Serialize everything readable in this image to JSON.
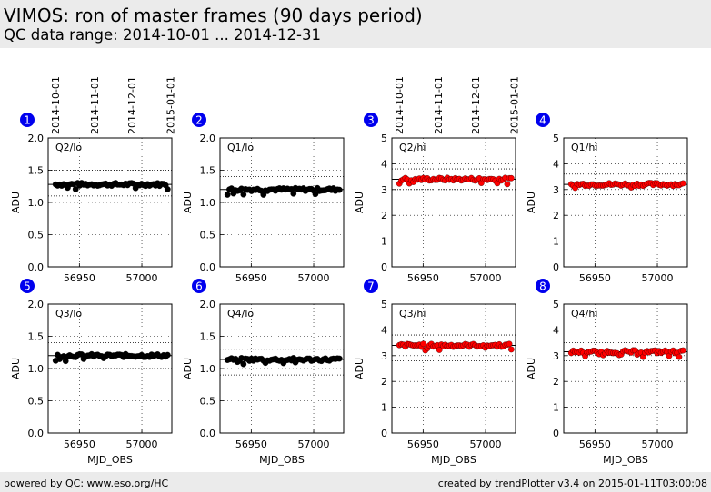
{
  "header": {
    "title": "VIMOS: ron of master frames (90 days period)",
    "subtitle": "QC data range: 2014-10-01 ... 2014-12-31"
  },
  "footer": {
    "left": "powered by QC: www.eso.org/HC",
    "right": "created by trendPlotter v3.4 on 2015-01-11T03:00:08"
  },
  "colors": {
    "black_series": "#000000",
    "red_series": "#ff0000",
    "badge": "#0000ee",
    "header_bg": "#ebebeb"
  },
  "chart_data": [
    {
      "type": "scatter",
      "panel": "1",
      "label": "Q2/lo",
      "ylabel": "ADU",
      "xlabel": "",
      "ylim": [
        0,
        2.0
      ],
      "yticks": [
        "0.0",
        "0.5",
        "1.0",
        "1.5",
        "2.0"
      ],
      "xlim": [
        56925,
        57024
      ],
      "xticks": [
        56950,
        57000
      ],
      "ref_lines": [
        1.5,
        1.1
      ],
      "color": "black",
      "level": 1.28,
      "date_ticks": [
        "2014-10-01",
        "2014-11-01",
        "2014-12-01",
        "2015-01-01"
      ]
    },
    {
      "type": "scatter",
      "panel": "2",
      "label": "Q1/lo",
      "ylabel": "ADU",
      "xlabel": "",
      "ylim": [
        0,
        2.0
      ],
      "yticks": [
        "0.0",
        "0.5",
        "1.0",
        "1.5",
        "2.0"
      ],
      "xlim": [
        56925,
        57024
      ],
      "xticks": [
        56950,
        57000
      ],
      "ref_lines": [
        1.4,
        1.0
      ],
      "color": "black",
      "level": 1.2,
      "date_ticks": []
    },
    {
      "type": "scatter",
      "panel": "3",
      "label": "Q2/hi",
      "ylabel": "ADU",
      "xlabel": "",
      "ylim": [
        0,
        5
      ],
      "yticks": [
        "0",
        "1",
        "2",
        "3",
        "4",
        "5"
      ],
      "xlim": [
        56925,
        57024
      ],
      "xticks": [
        56950,
        57000
      ],
      "ref_lines": [
        3.8,
        3.0
      ],
      "color": "red",
      "level": 3.4,
      "date_ticks": [
        "2014-10-01",
        "2014-11-01",
        "2014-12-01",
        "2015-01-01"
      ]
    },
    {
      "type": "scatter",
      "panel": "4",
      "label": "Q1/hi",
      "ylabel": "ADU",
      "xlabel": "",
      "ylim": [
        0,
        5
      ],
      "yticks": [
        "0",
        "1",
        "2",
        "3",
        "4",
        "5"
      ],
      "xlim": [
        56925,
        57024
      ],
      "xticks": [
        56950,
        57000
      ],
      "ref_lines": [
        3.6,
        2.8
      ],
      "color": "red",
      "level": 3.2,
      "date_ticks": []
    },
    {
      "type": "scatter",
      "panel": "5",
      "label": "Q3/lo",
      "ylabel": "ADU",
      "xlabel": "MJD_OBS",
      "ylim": [
        0,
        2.0
      ],
      "yticks": [
        "0.0",
        "0.5",
        "1.0",
        "1.5",
        "2.0"
      ],
      "xlim": [
        56925,
        57024
      ],
      "xticks": [
        56950,
        57000
      ],
      "ref_lines": [
        1.4,
        1.0
      ],
      "color": "black",
      "level": 1.2,
      "date_ticks": []
    },
    {
      "type": "scatter",
      "panel": "6",
      "label": "Q4/lo",
      "ylabel": "ADU",
      "xlabel": "MJD_OBS",
      "ylim": [
        0,
        2.0
      ],
      "yticks": [
        "0.0",
        "0.5",
        "1.0",
        "1.5",
        "2.0"
      ],
      "xlim": [
        56925,
        57024
      ],
      "xticks": [
        56950,
        57000
      ],
      "ref_lines": [
        1.3,
        0.9
      ],
      "color": "black",
      "level": 1.14,
      "date_ticks": []
    },
    {
      "type": "scatter",
      "panel": "7",
      "label": "Q3/hi",
      "ylabel": "ADU",
      "xlabel": "MJD_OBS",
      "ylim": [
        0,
        5
      ],
      "yticks": [
        "0",
        "1",
        "2",
        "3",
        "4",
        "5"
      ],
      "xlim": [
        56925,
        57024
      ],
      "xticks": [
        56950,
        57000
      ],
      "ref_lines": [
        3.8,
        2.8
      ],
      "color": "red",
      "level": 3.4,
      "date_ticks": []
    },
    {
      "type": "scatter",
      "panel": "8",
      "label": "Q4/hi",
      "ylabel": "ADU",
      "xlabel": "MJD_OBS",
      "ylim": [
        0,
        5
      ],
      "yticks": [
        "0",
        "1",
        "2",
        "3",
        "4",
        "5"
      ],
      "xlim": [
        56925,
        57024
      ],
      "xticks": [
        56950,
        57000
      ],
      "ref_lines": [
        3.5,
        2.8
      ],
      "color": "red",
      "level": 3.15,
      "date_ticks": []
    }
  ]
}
